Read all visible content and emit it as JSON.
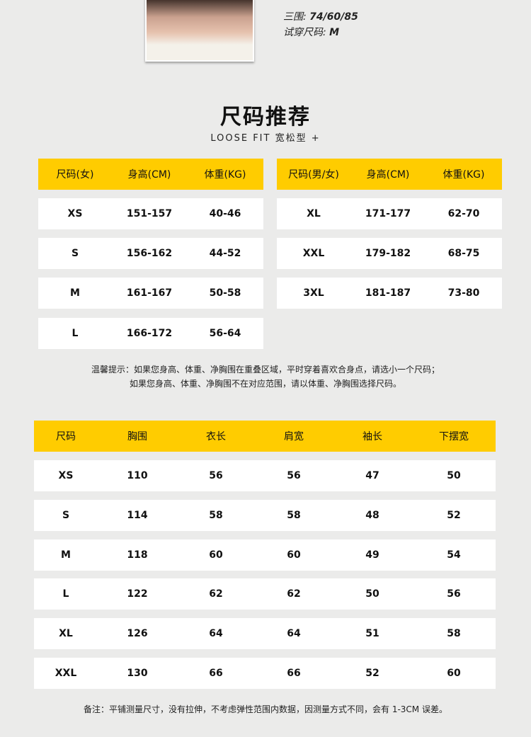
{
  "model": {
    "bust_label": "三围:",
    "bust_value": "74/60/85",
    "size_label": "试穿尺码:",
    "size_value": "M"
  },
  "title": "尺码推荐",
  "subtitle": "LOOSE FIT 宽松型 +",
  "women": {
    "headers": [
      "尺码(女)",
      "身高(CM)",
      "体重(KG)"
    ],
    "rows": [
      [
        "XS",
        "151-157",
        "40-46"
      ],
      [
        "S",
        "156-162",
        "44-52"
      ],
      [
        "M",
        "161-167",
        "50-58"
      ],
      [
        "L",
        "166-172",
        "56-64"
      ]
    ]
  },
  "unisex": {
    "headers": [
      "尺码(男/女)",
      "身高(CM)",
      "体重(KG)"
    ],
    "rows": [
      [
        "XL",
        "171-177",
        "62-70"
      ],
      [
        "XXL",
        "179-182",
        "68-75"
      ],
      [
        "3XL",
        "181-187",
        "73-80"
      ]
    ]
  },
  "tip": [
    "温馨提示：如果您身高、体重、净胸围在重叠区域，平时穿着喜欢合身点，请选小一个尺码；",
    "如果您身高、体重、净胸围不在对应范围，请以体重、净胸围选择尺码。"
  ],
  "measure": {
    "headers": [
      "尺码",
      "胸围",
      "衣长",
      "肩宽",
      "袖长",
      "下摆宽"
    ],
    "rows": [
      [
        "XS",
        "110",
        "56",
        "56",
        "47",
        "50"
      ],
      [
        "S",
        "114",
        "58",
        "58",
        "48",
        "52"
      ],
      [
        "M",
        "118",
        "60",
        "60",
        "49",
        "54"
      ],
      [
        "L",
        "122",
        "62",
        "62",
        "50",
        "56"
      ],
      [
        "XL",
        "126",
        "64",
        "64",
        "51",
        "58"
      ],
      [
        "XXL",
        "130",
        "66",
        "66",
        "52",
        "60"
      ]
    ]
  },
  "footnote": "备注：平铺测量尺寸，没有拉伸，不考虑弹性范围内数据，因测量方式不同，会有 1-3CM 误差。",
  "colors": {
    "header": "#ffcc00"
  }
}
